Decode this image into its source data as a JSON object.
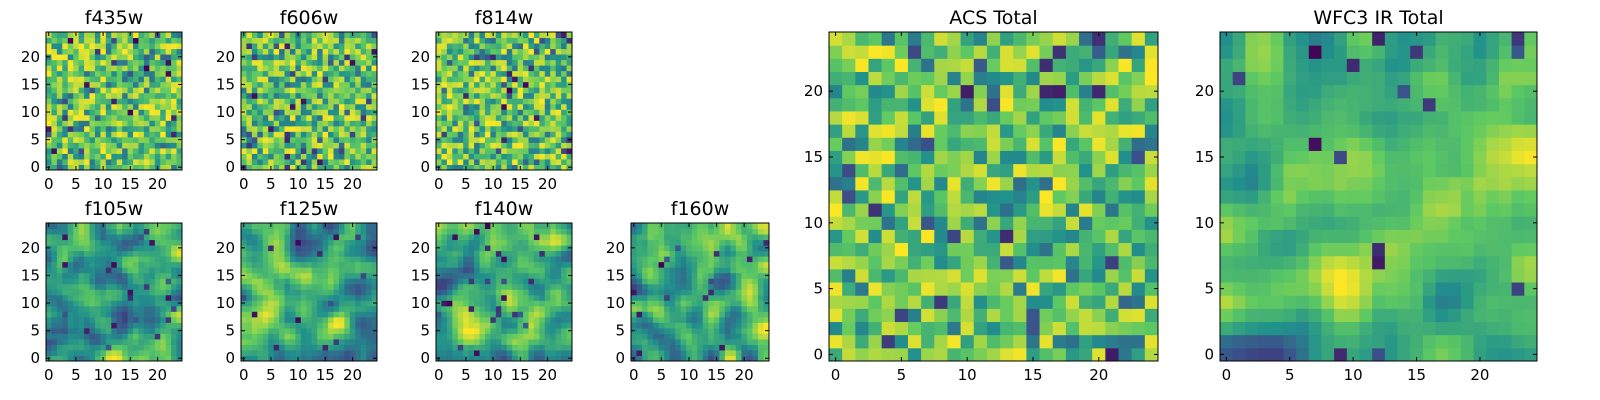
{
  "chart_data": [
    {
      "type": "heatmap",
      "title": "f435w",
      "xticks": [
        "0",
        "5",
        "10",
        "15",
        "20"
      ],
      "yticks": [
        "0",
        "5",
        "10",
        "15",
        "20"
      ],
      "xlim": [
        0,
        25
      ],
      "ylim": [
        0,
        25
      ],
      "grid_size": 25,
      "colormap": "viridis",
      "pattern": "noise"
    },
    {
      "type": "heatmap",
      "title": "f606w",
      "xticks": [
        "0",
        "5",
        "10",
        "15",
        "20"
      ],
      "yticks": [
        "0",
        "5",
        "10",
        "15",
        "20"
      ],
      "xlim": [
        0,
        25
      ],
      "ylim": [
        0,
        25
      ],
      "grid_size": 25,
      "colormap": "viridis",
      "pattern": "noise"
    },
    {
      "type": "heatmap",
      "title": "f814w",
      "xticks": [
        "0",
        "5",
        "10",
        "15",
        "20"
      ],
      "yticks": [
        "0",
        "5",
        "10",
        "15",
        "20"
      ],
      "xlim": [
        0,
        25
      ],
      "ylim": [
        0,
        25
      ],
      "grid_size": 25,
      "colormap": "viridis",
      "pattern": "noise"
    },
    {
      "type": "heatmap",
      "title": "f105w",
      "xticks": [
        "0",
        "5",
        "10",
        "15",
        "20"
      ],
      "yticks": [
        "0",
        "5",
        "10",
        "15",
        "20"
      ],
      "xlim": [
        0,
        25
      ],
      "ylim": [
        0,
        25
      ],
      "grid_size": 25,
      "colormap": "viridis",
      "pattern": "smooth"
    },
    {
      "type": "heatmap",
      "title": "f125w",
      "xticks": [
        "0",
        "5",
        "10",
        "15",
        "20"
      ],
      "yticks": [
        "0",
        "5",
        "10",
        "15",
        "20"
      ],
      "xlim": [
        0,
        25
      ],
      "ylim": [
        0,
        25
      ],
      "grid_size": 25,
      "colormap": "viridis",
      "pattern": "smooth"
    },
    {
      "type": "heatmap",
      "title": "f140w",
      "xticks": [
        "0",
        "5",
        "10",
        "15",
        "20"
      ],
      "yticks": [
        "0",
        "5",
        "10",
        "15",
        "20"
      ],
      "xlim": [
        0,
        25
      ],
      "ylim": [
        0,
        25
      ],
      "grid_size": 25,
      "colormap": "viridis",
      "pattern": "smooth"
    },
    {
      "type": "heatmap",
      "title": "f160w",
      "xticks": [
        "0",
        "5",
        "10",
        "15",
        "20"
      ],
      "yticks": [
        "0",
        "5",
        "10",
        "15",
        "20"
      ],
      "xlim": [
        0,
        25
      ],
      "ylim": [
        0,
        25
      ],
      "grid_size": 25,
      "colormap": "viridis",
      "pattern": "smooth"
    },
    {
      "type": "heatmap",
      "title": "ACS Total",
      "xticks": [
        "0",
        "5",
        "10",
        "15",
        "20"
      ],
      "yticks": [
        "0",
        "5",
        "10",
        "15",
        "20"
      ],
      "xlim": [
        0,
        25
      ],
      "ylim": [
        0,
        25
      ],
      "grid_size": 25,
      "colormap": "viridis",
      "pattern": "noise"
    },
    {
      "type": "heatmap",
      "title": "WFC3 IR Total",
      "xticks": [
        "0",
        "5",
        "10",
        "15",
        "20"
      ],
      "yticks": [
        "0",
        "5",
        "10",
        "15",
        "20"
      ],
      "xlim": [
        0,
        25
      ],
      "ylim": [
        0,
        25
      ],
      "grid_size": 25,
      "colormap": "viridis",
      "pattern": "smooth"
    }
  ]
}
